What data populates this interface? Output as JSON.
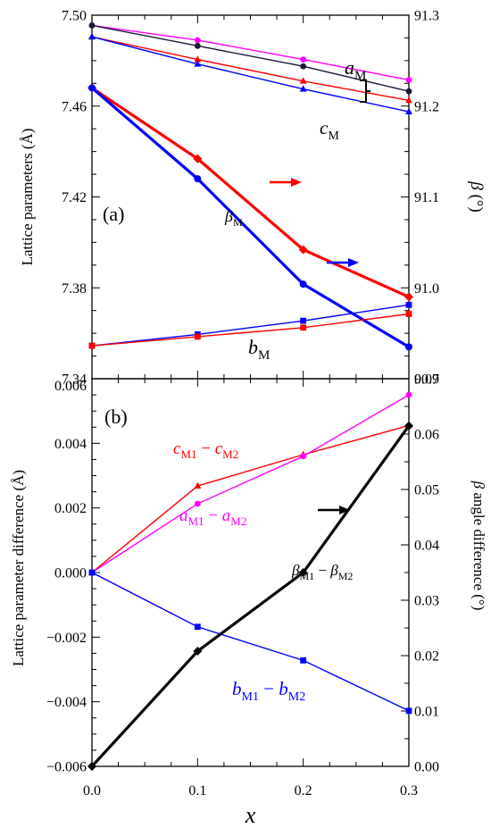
{
  "chart_data": [
    {
      "panel": "(a)",
      "type": "line",
      "x": [
        0.0,
        0.1,
        0.2,
        0.3
      ],
      "xlim": [
        0.0,
        0.3
      ],
      "xticks": [
        "0.0",
        "0.1",
        "0.2",
        "0.3"
      ],
      "ylabel_left": "Lattice parameters (Å)",
      "ylim_left": [
        7.34,
        7.5
      ],
      "yticks_left": [
        "7.34",
        "7.38",
        "7.42",
        "7.46",
        "7.50"
      ],
      "ylabel_right": "β (°)",
      "ylim_right": [
        90.9,
        91.3
      ],
      "yticks_right": [
        "90.9",
        "91.0",
        "91.1",
        "91.2",
        "91.3"
      ],
      "series": [
        {
          "axis": "left",
          "color": "#ff00ff",
          "marker": "circle",
          "values": [
            7.4955,
            7.489,
            7.4805,
            7.4715
          ]
        },
        {
          "axis": "left",
          "color": "#1a1a3a",
          "marker": "circle",
          "values": [
            7.4955,
            7.4865,
            7.4775,
            7.4665
          ]
        },
        {
          "axis": "left",
          "color": "#ff0000",
          "marker": "triangle",
          "values": [
            7.4905,
            7.4805,
            7.471,
            7.4625
          ]
        },
        {
          "axis": "left",
          "color": "#0000ff",
          "marker": "triangle",
          "values": [
            7.4905,
            7.4785,
            7.4675,
            7.4575
          ]
        },
        {
          "axis": "right",
          "color": "#ff0000",
          "marker": "diamond",
          "bold": true,
          "values": [
            91.22,
            91.142,
            91.042,
            90.99
          ]
        },
        {
          "axis": "right",
          "color": "#0000ff",
          "marker": "circle",
          "bold": true,
          "values": [
            91.22,
            91.12,
            91.004,
            90.935
          ]
        },
        {
          "axis": "left",
          "color": "#0000ff",
          "marker": "square",
          "values": [
            7.3545,
            7.3595,
            7.3655,
            7.3725
          ]
        },
        {
          "axis": "left",
          "color": "#ff0000",
          "marker": "square",
          "values": [
            7.3545,
            7.3585,
            7.3625,
            7.3685
          ]
        }
      ],
      "annotations": [
        {
          "text": "(a)"
        },
        {
          "text": "a",
          "sub": "M"
        },
        {
          "text": "c",
          "sub": "M"
        },
        {
          "text": "β",
          "sub": "M"
        },
        {
          "text": "b",
          "sub": "M"
        }
      ]
    },
    {
      "panel": "(b)",
      "type": "line",
      "x": [
        0.0,
        0.1,
        0.2,
        0.3
      ],
      "xlim": [
        0.0,
        0.3
      ],
      "xticks": [
        "0.0",
        "0.1",
        "0.2",
        "0.3"
      ],
      "xlabel": "x",
      "ylabel_left": "Lattice parameter difference (Å)",
      "ylim_left": [
        -0.006,
        0.006
      ],
      "yticks_left": [
        "−0.006",
        "−0.004",
        "−0.002",
        "0.000",
        "0.002",
        "0.004",
        "0.006"
      ],
      "ylabel_right": "β angle difference (°)",
      "ylim_right": [
        0.0,
        0.07
      ],
      "yticks_right": [
        "0.00",
        "0.01",
        "0.02",
        "0.03",
        "0.04",
        "0.05",
        "0.06",
        "0.07"
      ],
      "series": [
        {
          "name": "c",
          "name_sub": "M1",
          "name_mid": " − ",
          "name2": "c",
          "name2_sub": "M2",
          "axis": "left",
          "color": "#ff0000",
          "marker": "triangle",
          "values": [
            0.0,
            0.00268,
            0.00365,
            0.00455
          ]
        },
        {
          "name": "a",
          "name_sub": "M1",
          "name_mid": " − ",
          "name2": "a",
          "name2_sub": "M2",
          "axis": "left",
          "color": "#ff00ff",
          "marker": "circle",
          "values": [
            0.0,
            0.00213,
            0.0036,
            0.0055
          ]
        },
        {
          "name": "b",
          "name_sub": "M1",
          "name_mid": " − ",
          "name2": "b",
          "name2_sub": "M2",
          "axis": "left",
          "color": "#0000ff",
          "marker": "square",
          "values": [
            0.0,
            -0.00168,
            -0.00272,
            -0.00428
          ]
        },
        {
          "name": "β",
          "name_sub": "M1",
          "name_mid": " − ",
          "name2": "β",
          "name2_sub": "M2",
          "axis": "right",
          "color": "#000000",
          "marker": "diamond",
          "bold": true,
          "values": [
            0.0,
            0.0208,
            0.035,
            0.0615
          ]
        }
      ],
      "annotations": [
        {
          "text": "(b)"
        }
      ]
    }
  ]
}
